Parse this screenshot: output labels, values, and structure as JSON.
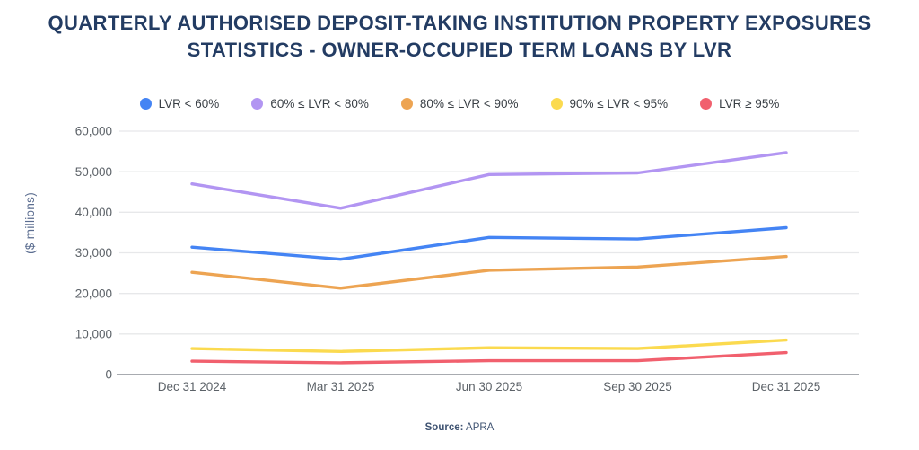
{
  "title": {
    "line1": "QUARTERLY AUTHORISED DEPOSIT-TAKING INSTITUTION PROPERTY EXPOSURES",
    "line2": "STATISTICS - OWNER-OCCUPIED TERM LOANS BY LVR"
  },
  "source": {
    "label": "Source:",
    "value": "APRA"
  },
  "chart_data": {
    "type": "line",
    "title": "QUARTERLY AUTHORISED DEPOSIT-TAKING INSTITUTION PROPERTY EXPOSURES STATISTICS - OWNER-OCCUPIED TERM LOANS BY LVR",
    "categories": [
      "Dec 31 2024",
      "Mar 31 2025",
      "Jun 30 2025",
      "Sep 30 2025",
      "Dec 31 2025"
    ],
    "series": [
      {
        "name": "LVR < 60%",
        "color": "#4484f4",
        "values": [
          31400,
          28400,
          33800,
          33400,
          36200
        ]
      },
      {
        "name": "60% ≤ LVR < 80%",
        "color": "#b295f2",
        "values": [
          47000,
          41000,
          49300,
          49700,
          54700
        ]
      },
      {
        "name": "80% ≤ LVR < 90%",
        "color": "#eda452",
        "values": [
          25200,
          21300,
          25700,
          26500,
          29100
        ]
      },
      {
        "name": "90% ≤ LVR < 95%",
        "color": "#fbda4f",
        "values": [
          6400,
          5700,
          6600,
          6400,
          8500
        ]
      },
      {
        "name": "LVR ≥ 95%",
        "color": "#f1606e",
        "values": [
          3300,
          2900,
          3400,
          3400,
          5400
        ]
      }
    ],
    "xlabel": "",
    "ylabel": "($ millions)",
    "ylim": [
      0,
      60000
    ],
    "ytick_step": 10000,
    "grid": true,
    "legend_position": "top"
  },
  "colors": {
    "title_text": "#233c63",
    "axis_text": "#5c6268",
    "gridline": "#e7e8ea",
    "axis_line": "#a8abb0",
    "y_axis_title_text": "#5b6d90",
    "legend_text": "#3a4046",
    "source_text": "#3f5372"
  }
}
